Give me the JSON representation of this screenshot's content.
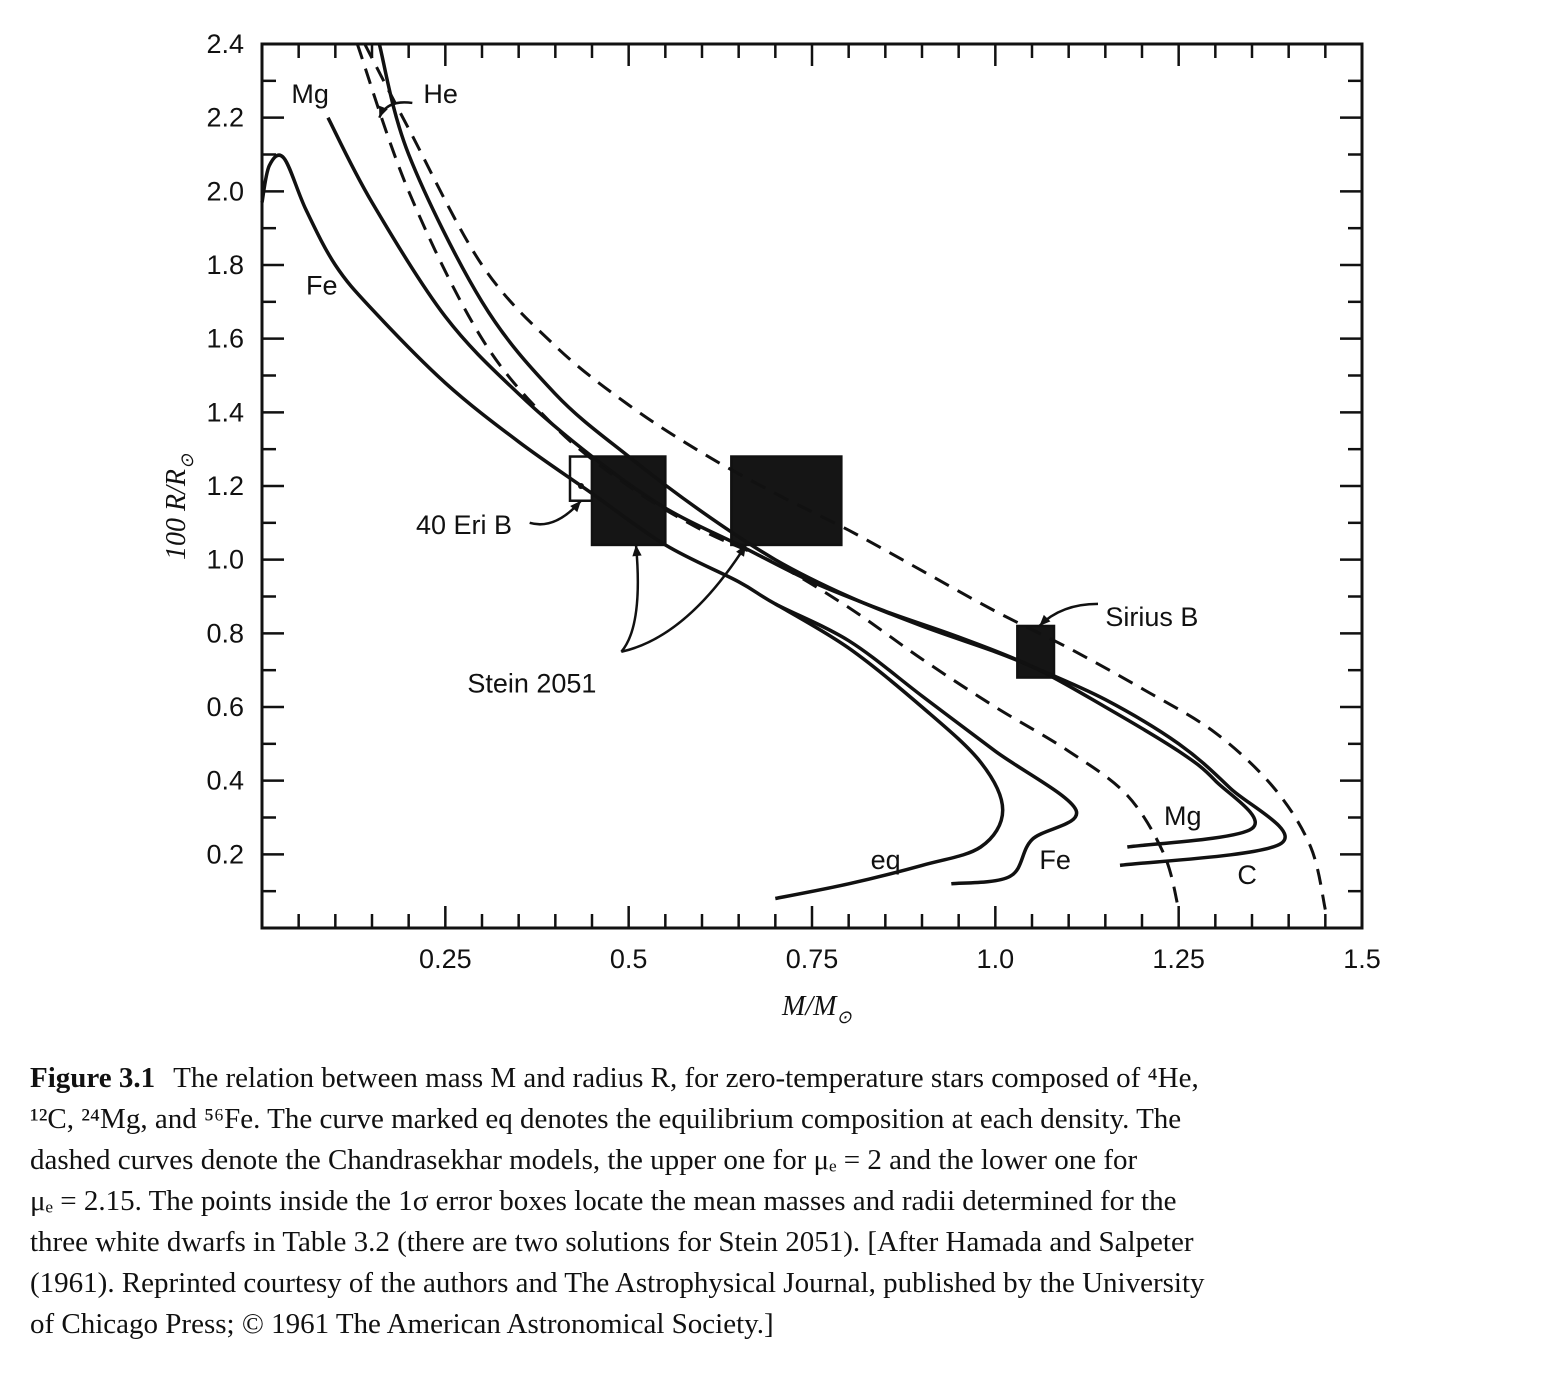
{
  "chart_data": {
    "type": "line",
    "xlabel": "M/M",
    "xlabel_sub": "⊙",
    "ylabel": "100 R/R",
    "ylabel_sub": "⊙",
    "xlim": [
      0,
      1.5
    ],
    "ylim": [
      0,
      2.4
    ],
    "x_ticks": [
      {
        "value": 0.25,
        "label": "0.25"
      },
      {
        "value": 0.5,
        "label": "0.5"
      },
      {
        "value": 0.75,
        "label": "0.75"
      },
      {
        "value": 1.0,
        "label": "1.0"
      },
      {
        "value": 1.25,
        "label": "1.25"
      },
      {
        "value": 1.5,
        "label": "1.5"
      }
    ],
    "y_ticks": [
      {
        "value": 0.2,
        "label": "0.2"
      },
      {
        "value": 0.4,
        "label": "0.4"
      },
      {
        "value": 0.6,
        "label": "0.6"
      },
      {
        "value": 0.8,
        "label": "0.8"
      },
      {
        "value": 1.0,
        "label": "1.0"
      },
      {
        "value": 1.2,
        "label": "1.2"
      },
      {
        "value": 1.4,
        "label": "1.4"
      },
      {
        "value": 1.6,
        "label": "1.6"
      },
      {
        "value": 1.8,
        "label": "1.8"
      },
      {
        "value": 2.0,
        "label": "2.0"
      },
      {
        "value": 2.2,
        "label": "2.2"
      },
      {
        "value": 2.4,
        "label": "2.4"
      }
    ],
    "series": [
      {
        "name": "He",
        "style": "solid",
        "points": [
          [
            0.16,
            2.4
          ],
          [
            0.2,
            2.1
          ],
          [
            0.3,
            1.7
          ],
          [
            0.4,
            1.45
          ],
          [
            0.5,
            1.28
          ],
          [
            0.6,
            1.13
          ],
          [
            0.7,
            1.0
          ],
          [
            0.8,
            0.9
          ],
          [
            0.9,
            0.82
          ],
          [
            1.0,
            0.75
          ],
          [
            1.05,
            0.71
          ]
        ]
      },
      {
        "name": "Mg",
        "style": "solid",
        "points": [
          [
            0.09,
            2.2
          ],
          [
            0.15,
            1.97
          ],
          [
            0.25,
            1.66
          ],
          [
            0.35,
            1.45
          ],
          [
            0.45,
            1.28
          ],
          [
            0.55,
            1.14
          ],
          [
            0.65,
            1.04
          ],
          [
            0.75,
            0.94
          ],
          [
            0.85,
            0.86
          ],
          [
            0.95,
            0.79
          ],
          [
            1.05,
            0.71
          ],
          [
            1.15,
            0.6
          ],
          [
            1.25,
            0.48
          ],
          [
            1.3,
            0.4
          ],
          [
            1.35,
            0.27
          ],
          [
            1.18,
            0.22
          ]
        ]
      },
      {
        "name": "C",
        "style": "solid",
        "points": [
          [
            1.05,
            0.71
          ],
          [
            1.15,
            0.62
          ],
          [
            1.25,
            0.5
          ],
          [
            1.32,
            0.38
          ],
          [
            1.39,
            0.23
          ],
          [
            1.17,
            0.17
          ]
        ]
      },
      {
        "name": "Fe",
        "style": "solid",
        "points": [
          [
            0.0,
            1.97
          ],
          [
            0.01,
            2.07
          ],
          [
            0.03,
            2.09
          ],
          [
            0.06,
            1.95
          ],
          [
            0.1,
            1.8
          ],
          [
            0.15,
            1.68
          ],
          [
            0.25,
            1.48
          ],
          [
            0.35,
            1.32
          ],
          [
            0.45,
            1.18
          ],
          [
            0.55,
            1.04
          ],
          [
            0.65,
            0.94
          ],
          [
            0.7,
            0.88
          ],
          [
            0.8,
            0.78
          ],
          [
            0.9,
            0.63
          ],
          [
            1.0,
            0.48
          ],
          [
            1.11,
            0.32
          ],
          [
            1.05,
            0.24
          ],
          [
            1.02,
            0.14
          ],
          [
            0.94,
            0.12
          ]
        ]
      },
      {
        "name": "eq",
        "style": "solid",
        "points": [
          [
            0.7,
            0.88
          ],
          [
            0.8,
            0.76
          ],
          [
            0.9,
            0.6
          ],
          [
            0.98,
            0.45
          ],
          [
            1.01,
            0.32
          ],
          [
            0.98,
            0.22
          ],
          [
            0.9,
            0.17
          ],
          [
            0.8,
            0.12
          ],
          [
            0.7,
            0.08
          ]
        ]
      },
      {
        "name": "",
        "style": "dashed",
        "points": [
          [
            0.13,
            2.4
          ],
          [
            0.2,
            2.0
          ],
          [
            0.3,
            1.6
          ],
          [
            0.4,
            1.36
          ],
          [
            0.5,
            1.2
          ],
          [
            0.6,
            1.08
          ],
          [
            0.7,
            0.99
          ],
          [
            0.8,
            0.87
          ],
          [
            0.9,
            0.73
          ],
          [
            1.0,
            0.6
          ],
          [
            1.1,
            0.48
          ],
          [
            1.18,
            0.36
          ],
          [
            1.23,
            0.2
          ],
          [
            1.25,
            0.05
          ]
        ]
      },
      {
        "name": "",
        "style": "dashed",
        "points": [
          [
            0.14,
            2.4
          ],
          [
            0.2,
            2.17
          ],
          [
            0.3,
            1.8
          ],
          [
            0.4,
            1.58
          ],
          [
            0.5,
            1.42
          ],
          [
            0.6,
            1.29
          ],
          [
            0.7,
            1.18
          ],
          [
            0.8,
            1.08
          ],
          [
            0.9,
            0.97
          ],
          [
            1.0,
            0.86
          ],
          [
            1.1,
            0.76
          ],
          [
            1.2,
            0.65
          ],
          [
            1.3,
            0.53
          ],
          [
            1.38,
            0.38
          ],
          [
            1.43,
            0.22
          ],
          [
            1.45,
            0.05
          ]
        ]
      }
    ],
    "boxes": [
      {
        "name": "40 Eri B",
        "x": [
          0.42,
          0.45
        ],
        "y": [
          1.16,
          1.28
        ],
        "filled": false,
        "point": [
          0.435,
          1.2
        ]
      },
      {
        "name": "Stein 2051",
        "x": [
          0.45,
          0.55
        ],
        "y": [
          1.04,
          1.28
        ],
        "filled": true
      },
      {
        "name": "Stein 2051",
        "x": [
          0.64,
          0.79
        ],
        "y": [
          1.04,
          1.28
        ],
        "filled": true
      },
      {
        "name": "Sirius B",
        "x": [
          1.03,
          1.08
        ],
        "y": [
          0.68,
          0.82
        ],
        "filled": true
      }
    ],
    "annotations": [
      {
        "text": "Mg",
        "x": 0.04,
        "y": 2.24
      },
      {
        "text": "He",
        "x": 0.22,
        "y": 2.24
      },
      {
        "text": "Fe",
        "x": 0.06,
        "y": 1.72
      },
      {
        "text": "40 Eri B",
        "x": 0.21,
        "y": 1.07
      },
      {
        "text": "Stein 2051",
        "x": 0.28,
        "y": 0.64
      },
      {
        "text": "Sirius B",
        "x": 1.15,
        "y": 0.82
      },
      {
        "text": "Mg",
        "x": 1.23,
        "y": 0.28
      },
      {
        "text": "Fe",
        "x": 1.06,
        "y": 0.16
      },
      {
        "text": "eq",
        "x": 0.83,
        "y": 0.16
      },
      {
        "text": "C",
        "x": 1.33,
        "y": 0.12
      }
    ],
    "grid": false
  },
  "caption": {
    "label": "Figure 3.1",
    "lines": [
      "The relation between mass M and radius R, for zero-temperature stars composed of ⁴He,",
      "¹²C, ²⁴Mg, and ⁵⁶Fe. The curve marked eq denotes the equilibrium composition at each density. The",
      "dashed curves denote the Chandrasekhar models, the upper one for μₑ = 2 and the lower one for",
      "μₑ = 2.15. The points inside the 1σ error boxes locate the mean masses and radii determined for the",
      "three white dwarfs in Table 3.2 (there are two solutions for Stein 2051). [After Hamada and Salpeter",
      "(1961). Reprinted courtesy of the authors and The Astrophysical Journal, published by the University",
      "of Chicago Press; © 1961 The American Astronomical Society.]"
    ]
  }
}
